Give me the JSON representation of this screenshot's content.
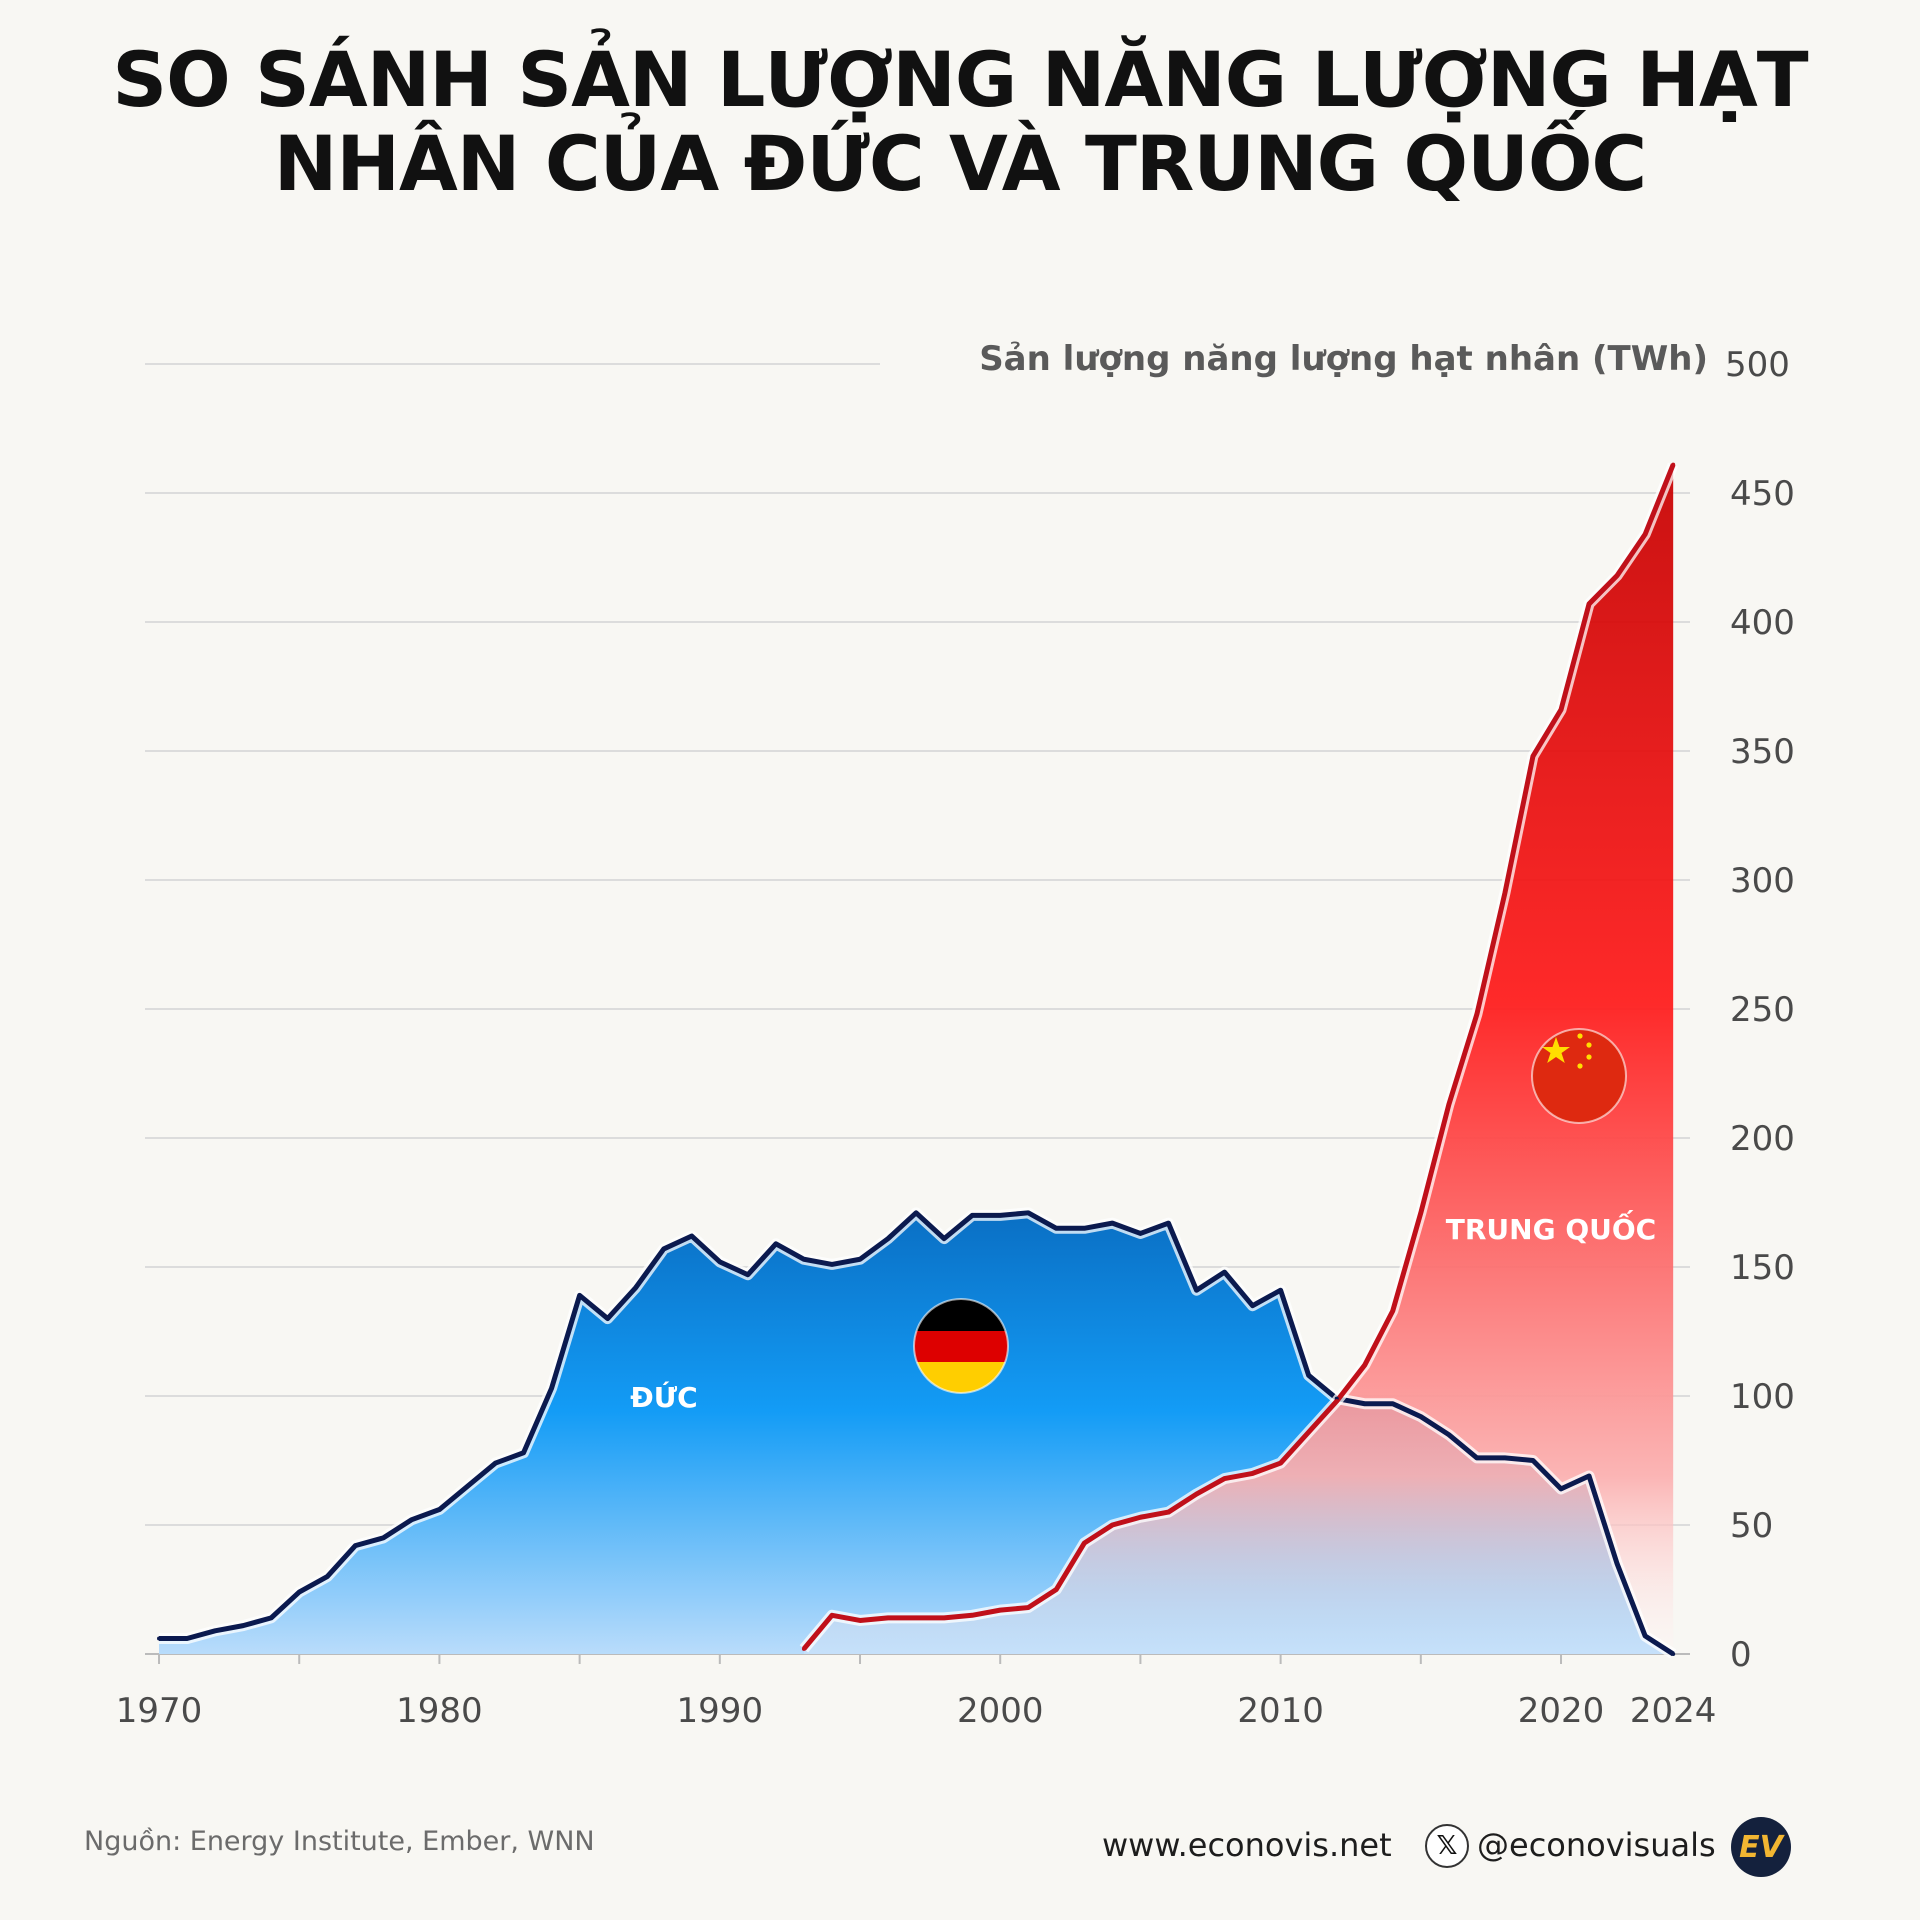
{
  "title": {
    "line1": "SO SÁNH SẢN LƯỢNG NĂNG LƯỢNG HẠT",
    "line2": "NHÂN CỦA ĐỨC VÀ TRUNG QUỐC"
  },
  "chart_data": {
    "type": "area",
    "title": "SO SÁNH SẢN LƯỢNG NĂNG LƯỢNG HẠT NHÂN CỦA ĐỨC VÀ TRUNG QUỐC",
    "ylabel": "Sản lượng năng lượng hạt nhân (TWh)",
    "xlabel": "",
    "ylim": [
      0,
      500
    ],
    "xlim": [
      1969.5,
      2024.6
    ],
    "yticks": [
      0,
      50,
      100,
      150,
      200,
      250,
      300,
      350,
      400,
      450,
      500
    ],
    "xticks": [
      1970,
      1980,
      1990,
      2000,
      2010,
      2020,
      2024
    ],
    "grid": true,
    "series": [
      {
        "name": "ĐỨC",
        "color": "#0b1a4f",
        "x": [
          1970,
          1971,
          1972,
          1973,
          1974,
          1975,
          1976,
          1977,
          1978,
          1979,
          1980,
          1981,
          1982,
          1983,
          1984,
          1985,
          1986,
          1987,
          1988,
          1989,
          1990,
          1991,
          1992,
          1993,
          1994,
          1995,
          1996,
          1997,
          1998,
          1999,
          2000,
          2001,
          2002,
          2003,
          2004,
          2005,
          2006,
          2007,
          2008,
          2009,
          2010,
          2011,
          2012,
          2013,
          2014,
          2015,
          2016,
          2017,
          2018,
          2019,
          2020,
          2021,
          2022,
          2023,
          2024
        ],
        "values": [
          6,
          6,
          9,
          11,
          14,
          24,
          30,
          42,
          45,
          52,
          56,
          65,
          74,
          78,
          103,
          139,
          130,
          142,
          157,
          162,
          152,
          147,
          159,
          153,
          151,
          153,
          161,
          171,
          161,
          170,
          170,
          171,
          165,
          165,
          167,
          163,
          167,
          141,
          148,
          135,
          141,
          108,
          99,
          97,
          97,
          92,
          85,
          76,
          76,
          75,
          64,
          69,
          35,
          7,
          0
        ]
      },
      {
        "name": "TRUNG QUỐC",
        "color": "#c0101a",
        "x": [
          1993,
          1994,
          1995,
          1996,
          1997,
          1998,
          1999,
          2000,
          2001,
          2002,
          2003,
          2004,
          2005,
          2006,
          2007,
          2008,
          2009,
          2010,
          2011,
          2012,
          2013,
          2014,
          2015,
          2016,
          2017,
          2018,
          2019,
          2020,
          2021,
          2022,
          2023,
          2024
        ],
        "values": [
          2,
          15,
          13,
          14,
          14,
          14,
          15,
          17,
          18,
          25,
          43,
          50,
          53,
          55,
          62,
          68,
          70,
          74,
          86,
          98,
          112,
          133,
          171,
          213,
          248,
          295,
          348,
          366,
          407,
          418,
          434,
          461
        ]
      }
    ]
  },
  "labels": {
    "germany": "ĐỨC",
    "china": "TRUNG QUỐC"
  },
  "icons": {
    "germany_flag": "germany-flag-icon",
    "china_flag": "china-flag-icon"
  },
  "colors": {
    "germany_line": "#0b1a4f",
    "germany_fill_top": "#0a6fc4",
    "germany_fill_bottom": "#b9dcfb",
    "china_line": "#c0101a",
    "china_fill_top": "#c70000",
    "china_fill_bottom": "#fde8e8"
  },
  "footer": {
    "source": "Nguồn: Energy Institute, Ember, WNN",
    "website": "www.econovis.net",
    "x_glyph": "𝕏",
    "handle": "@econovisuals",
    "logo": "EV"
  }
}
